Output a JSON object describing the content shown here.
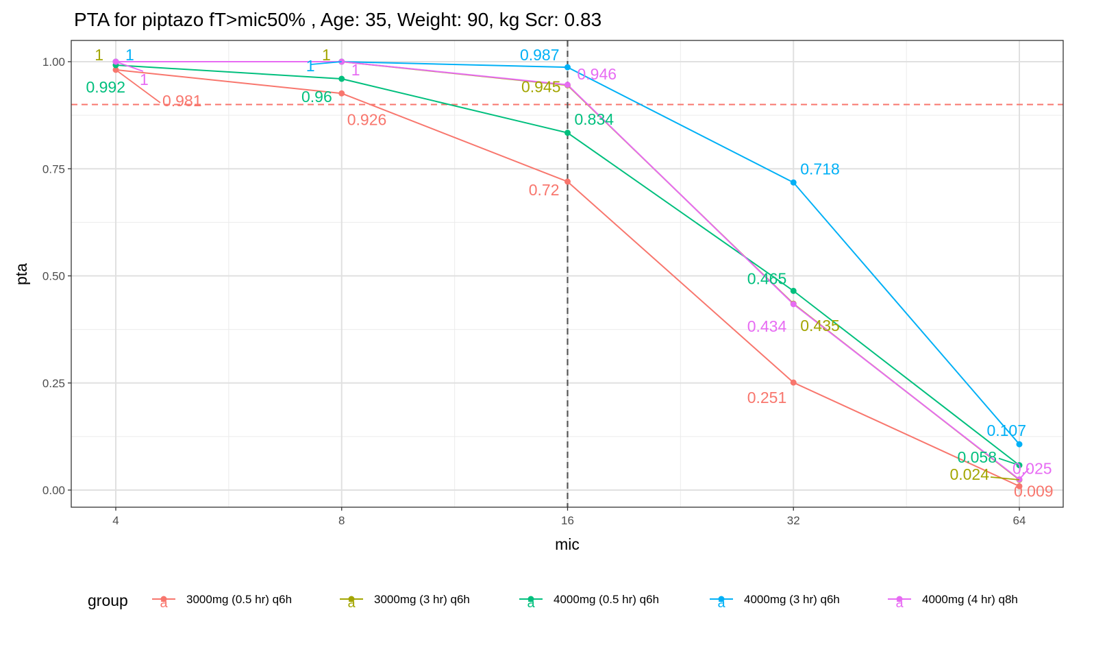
{
  "chart_data": {
    "type": "line",
    "title": "PTA for piptazo fT>mic50% , Age: 35, Weight: 90, kg Scr: 0.83",
    "xlabel": "mic",
    "ylabel": "pta",
    "x_scale": "log2",
    "x": [
      4,
      8,
      16,
      32,
      64
    ],
    "x_tick_labels": [
      "4",
      "8",
      "16",
      "32",
      "64"
    ],
    "ylim": [
      0,
      1
    ],
    "y_ticks": [
      0,
      0.25,
      0.5,
      0.75,
      1.0
    ],
    "y_tick_labels": [
      "0.00",
      "0.25",
      "0.50",
      "0.75",
      "1.00"
    ],
    "grid": true,
    "reference_lines": {
      "hline": {
        "y": 0.9,
        "color": "#F8766D",
        "style": "dashed"
      },
      "vline": {
        "x": 16,
        "color": "#555555",
        "style": "dashed"
      }
    },
    "legend": {
      "title": "group",
      "position": "bottom",
      "key_glyph": "a"
    },
    "series": [
      {
        "name": "3000mg (0.5 hr) q6h",
        "color": "#F8766D",
        "values": [
          0.981,
          0.926,
          0.72,
          0.251,
          0.009
        ],
        "labels": [
          "0.981",
          "0.926",
          "0.72",
          "0.251",
          "0.009"
        ]
      },
      {
        "name": "3000mg (3 hr) q6h",
        "color": "#A3A500",
        "values": [
          1,
          1,
          0.945,
          0.435,
          0.024
        ],
        "labels": [
          "1",
          "1",
          "0.945",
          "0.435",
          "0.024"
        ]
      },
      {
        "name": "4000mg (0.5 hr) q6h",
        "color": "#00BF7D",
        "values": [
          0.992,
          0.96,
          0.834,
          0.465,
          0.058
        ],
        "labels": [
          "0.992",
          "0.96",
          "0.834",
          "0.465",
          "0.058"
        ]
      },
      {
        "name": "4000mg (3 hr) q6h",
        "color": "#00B0F6",
        "values": [
          1,
          1,
          0.987,
          0.718,
          0.107
        ],
        "labels": [
          "1",
          "1",
          "0.987",
          "0.718",
          "0.107"
        ]
      },
      {
        "name": "4000mg (4 hr) q8h",
        "color": "#E76BF3",
        "values": [
          1,
          1,
          0.946,
          0.434,
          0.025
        ],
        "labels": [
          "1",
          "1",
          "0.946",
          "0.434",
          "0.025"
        ]
      }
    ]
  }
}
